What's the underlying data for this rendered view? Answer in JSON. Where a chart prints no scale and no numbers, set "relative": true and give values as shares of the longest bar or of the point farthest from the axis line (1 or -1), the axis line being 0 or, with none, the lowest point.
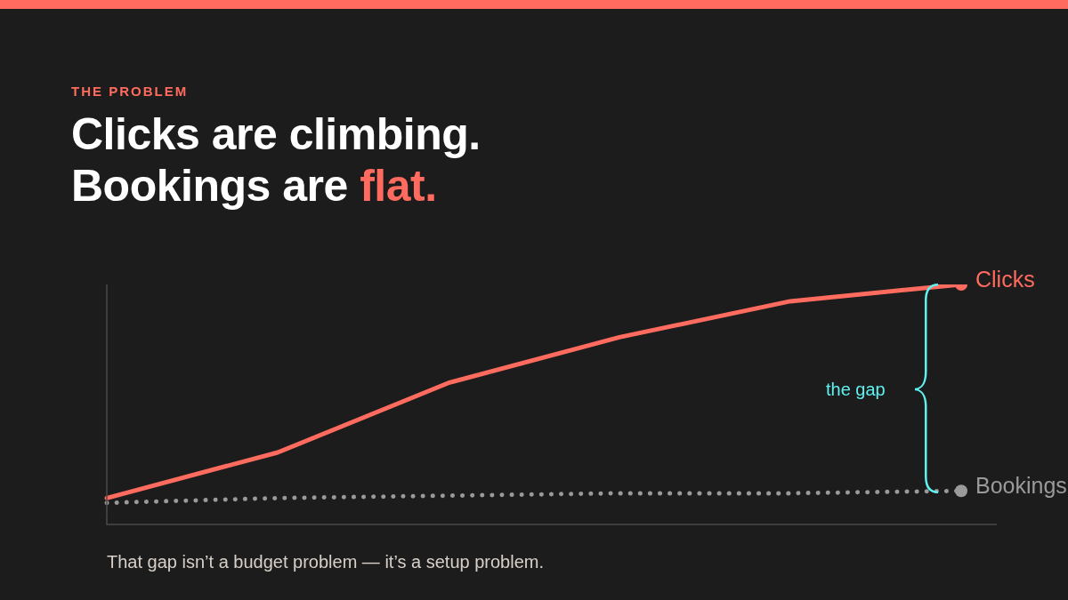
{
  "chart_data": {
    "type": "line",
    "subtitle": "THE PROBLEM",
    "title": "Clicks are climbing.\nBookings are flat.",
    "relative": true,
    "categories": [
      null,
      null,
      null,
      null,
      null,
      null
    ],
    "series": [
      {
        "name": "Clicks",
        "color": "#ff6b5e",
        "line_style": "solid",
        "values": [
          0.11,
          0.3,
          0.59,
          0.78,
          0.93,
          1
        ]
      },
      {
        "name": "Bookings",
        "color": "#9a9a9a",
        "line_style": "dotted",
        "values": [
          0.09,
          0.11,
          0.12,
          0.13,
          0.13,
          0.14
        ]
      }
    ],
    "annotations": [
      "the gap",
      "That gap isn’t a budget problem — it’s a setup problem."
    ],
    "grid": false,
    "legend": false
  }
}
